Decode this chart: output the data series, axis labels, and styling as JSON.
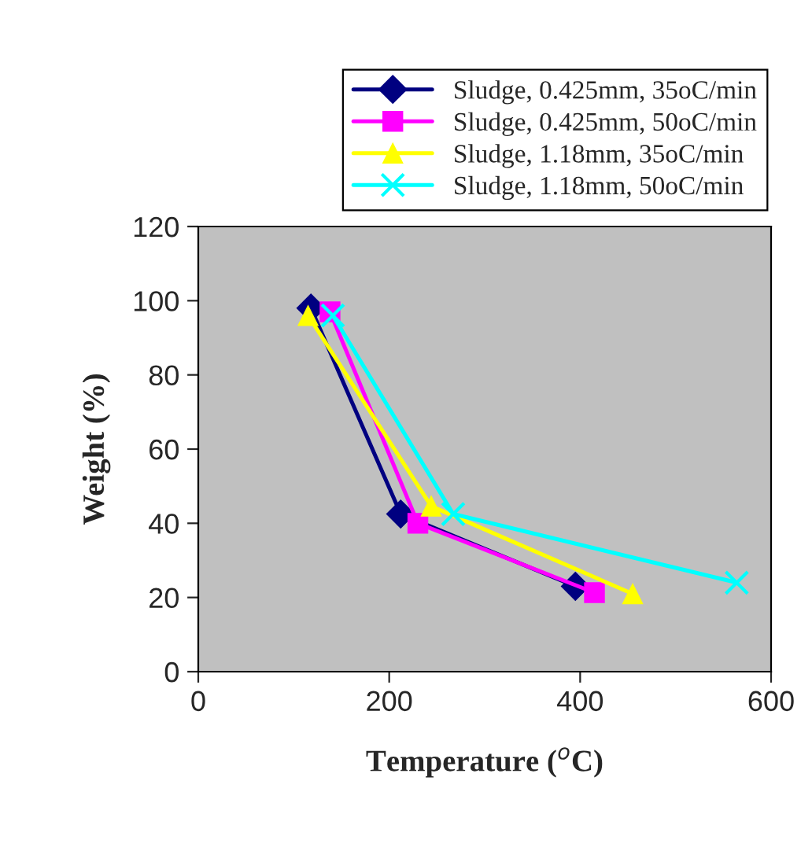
{
  "chart_data": {
    "type": "line",
    "xlabel": "Temperature ($^{o}$C)",
    "ylabel": "Weight (%)",
    "xlim": [
      0,
      600
    ],
    "xticks": [
      0,
      200,
      400,
      600
    ],
    "ylim": [
      0,
      120
    ],
    "yticks": [
      0,
      20,
      40,
      60,
      80,
      100,
      120
    ],
    "grid": false,
    "legend": "top right",
    "series": [
      {
        "name": "Sludge, 0.425mm, 35oC/min",
        "color": "#000080",
        "marker": "diamond",
        "x": [
          118,
          212,
          395
        ],
        "values": [
          98,
          42.5,
          23
        ]
      },
      {
        "name": "Sludge, 0.425mm, 50oC/min",
        "color": "#ff00ff",
        "marker": "square",
        "x": [
          138,
          230,
          415
        ],
        "values": [
          97,
          40,
          21.3
        ]
      },
      {
        "name": "Sludge, 1.18mm, 35oC/min",
        "color": "#ffff00",
        "marker": "triangle",
        "x": [
          115,
          244,
          455
        ],
        "values": [
          96,
          44.6,
          21
        ]
      },
      {
        "name": "Sludge, 1.18mm, 50oC/min",
        "color": "#00ffff",
        "marker": "cross",
        "x": [
          141,
          267,
          564
        ],
        "values": [
          96,
          42.5,
          24
        ]
      }
    ]
  }
}
